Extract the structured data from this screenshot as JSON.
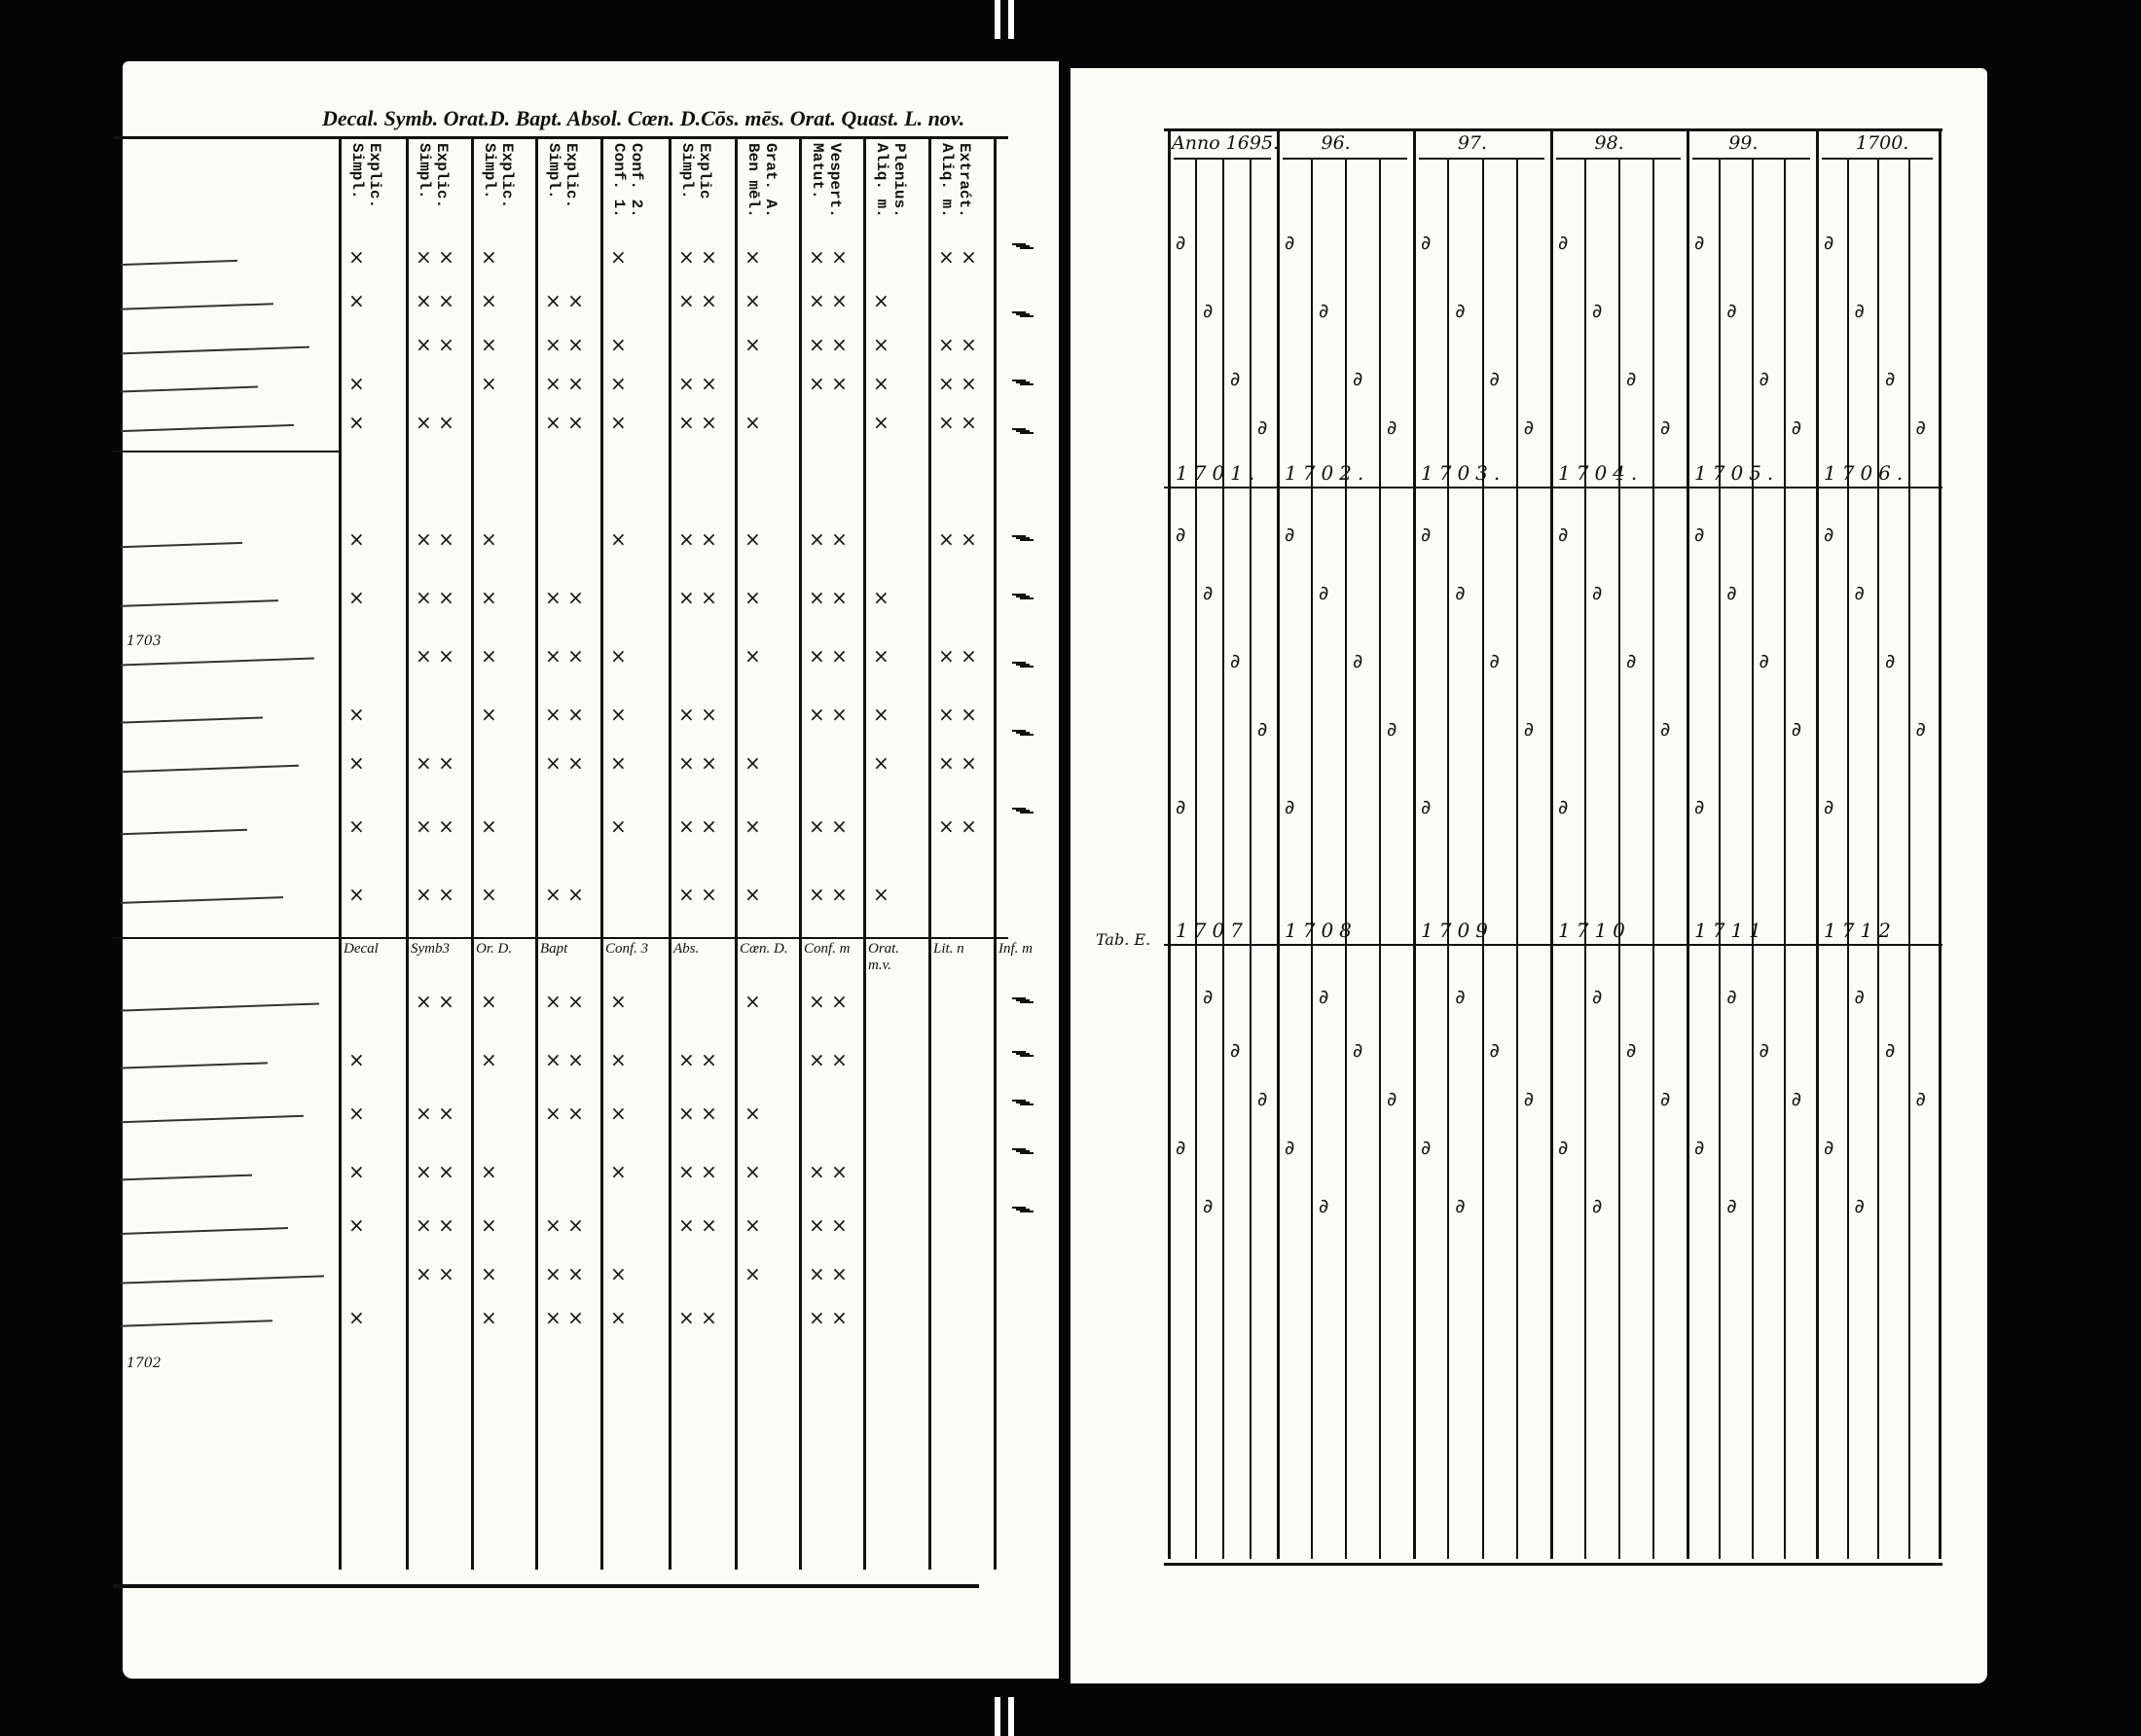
{
  "left_page": {
    "printed_header": "Decal. Symb. Orat.D. Bapt. Absol. Cœn. D.Cōs. mēs. Orat. Quast. L. nov.",
    "column_headers": [
      "Explic. Simpl.",
      "Explic. Simpl.",
      "Explic. Simpl.",
      "Explic. Simpl.",
      "Conf. 2. Conf. 1.",
      "Explic Simpl.",
      "Grat. A. Ben mēl.",
      "Vespert. Matut.",
      "Plenius. Aliq. m.",
      "Extraćt. Aliq. m."
    ],
    "section3_headers": [
      "Decal",
      "Symb3",
      "Or. D.",
      "Bapt",
      "Conf. 3",
      "Abs.",
      "Cœn. D.",
      "Conf. m",
      "Orat. m.v.",
      "Lit. n",
      "Inf. m"
    ],
    "margin_year": "1703",
    "bottom_margin_year": "1702"
  },
  "right_page": {
    "year_headers": [
      "Anno 1695.",
      "96.",
      "97.",
      "98.",
      "99.",
      "1700."
    ],
    "year_row_2": [
      "1701.",
      "1702.",
      "1703.",
      "1704.",
      "1705.",
      "1706."
    ],
    "year_row_3": [
      "1707",
      "1708",
      "1709",
      "1710",
      "1711",
      "1712"
    ],
    "row3_label": "Tab. E."
  }
}
